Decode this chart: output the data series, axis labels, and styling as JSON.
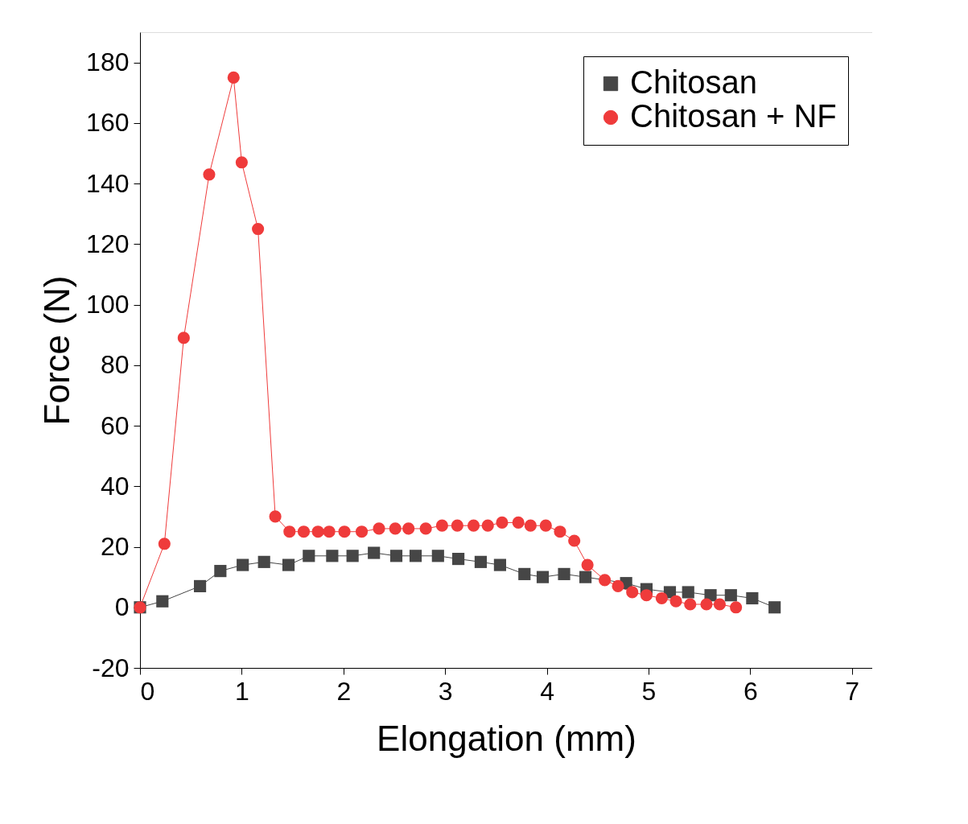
{
  "chart_data": {
    "type": "line",
    "xlabel": "Elongation (mm)",
    "ylabel": "Force (N)",
    "xlim": [
      0,
      7.2
    ],
    "xticks": [
      0,
      1,
      2,
      3,
      4,
      5,
      6,
      7
    ],
    "ylim": [
      -20,
      190
    ],
    "yticks": [
      -20,
      0,
      20,
      40,
      60,
      80,
      100,
      120,
      140,
      160,
      180
    ],
    "grid": false,
    "legend": "top right",
    "series": [
      {
        "name": "Chitosan",
        "color": "#464646",
        "marker": "square",
        "x": [
          0,
          0.22,
          0.59,
          0.79,
          1.01,
          1.22,
          1.46,
          1.66,
          1.89,
          2.09,
          2.3,
          2.52,
          2.71,
          2.93,
          3.13,
          3.35,
          3.54,
          3.78,
          3.96,
          4.17,
          4.38,
          4.78,
          4.98,
          5.21,
          5.39,
          5.61,
          5.81,
          6.02,
          6.24
        ],
        "values": [
          0,
          2,
          7,
          12,
          14,
          15,
          14,
          17,
          17,
          17,
          18,
          17,
          17,
          17,
          16,
          15,
          14,
          11,
          10,
          11,
          10,
          8,
          6,
          5,
          5,
          4,
          4,
          3,
          0
        ]
      },
      {
        "name": "Chitosan + NF",
        "color": "#ef3b3b",
        "marker": "circle",
        "x": [
          0,
          0.24,
          0.43,
          0.68,
          0.92,
          1.0,
          1.16,
          1.33,
          1.47,
          1.61,
          1.75,
          1.86,
          2.01,
          2.18,
          2.35,
          2.51,
          2.64,
          2.81,
          2.97,
          3.12,
          3.28,
          3.42,
          3.56,
          3.72,
          3.84,
          3.99,
          4.13,
          4.27,
          4.4,
          4.57,
          4.7,
          4.84,
          4.98,
          5.13,
          5.27,
          5.41,
          5.57,
          5.7,
          5.86
        ],
        "values": [
          0,
          21,
          89,
          143,
          175,
          147,
          125,
          30,
          25,
          25,
          25,
          25,
          25,
          25,
          26,
          26,
          26,
          26,
          27,
          27,
          27,
          27,
          28,
          28,
          27,
          27,
          25,
          22,
          14,
          9,
          7,
          5,
          4,
          3,
          2,
          1,
          1,
          1,
          0
        ]
      }
    ]
  }
}
